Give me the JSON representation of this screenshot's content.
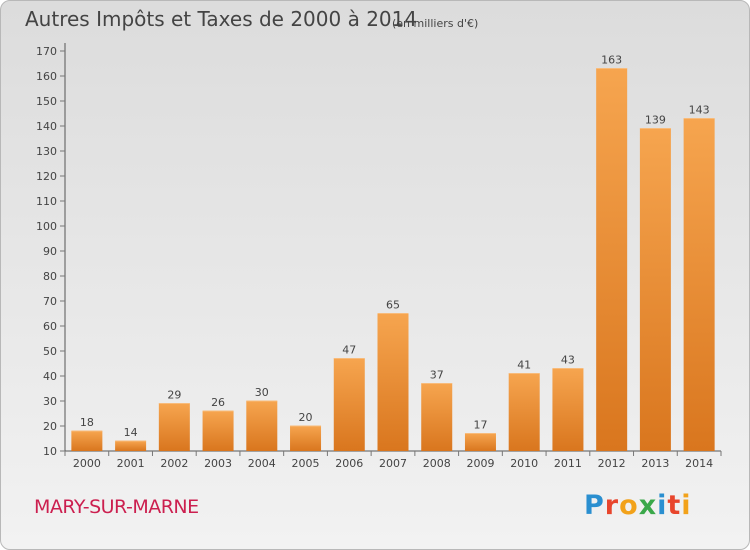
{
  "header": {
    "title": "Autres Impôts et Taxes de 2000 à 2014",
    "subtitle": "(en milliers d'€)"
  },
  "footer": {
    "commune": "MARY-SUR-MARNE",
    "logo_text": "Proxiti",
    "logo_colors": [
      "#2a8fd0",
      "#e8452c",
      "#f2a21a",
      "#3aa84a",
      "#2a8fd0",
      "#e8452c",
      "#f2a21a"
    ]
  },
  "colors": {
    "bar_light": "#f6a54f",
    "bar_dark": "#d9761e",
    "axis": "#555555",
    "grid_tick": "#777777",
    "commune": "#cc1f4f"
  },
  "chart_data": {
    "type": "bar",
    "title": "Autres Impôts et Taxes de 2000 à 2014",
    "subtitle": "(en milliers d'€)",
    "categories": [
      "2000",
      "2001",
      "2002",
      "2003",
      "2004",
      "2005",
      "2006",
      "2007",
      "2008",
      "2009",
      "2010",
      "2011",
      "2012",
      "2013",
      "2014"
    ],
    "values": [
      18,
      14,
      29,
      26,
      30,
      20,
      47,
      65,
      37,
      17,
      41,
      43,
      163,
      139,
      143
    ],
    "ylim": [
      10,
      170
    ],
    "yticks": [
      10,
      20,
      30,
      40,
      50,
      60,
      70,
      80,
      90,
      100,
      110,
      120,
      130,
      140,
      150,
      160,
      170
    ],
    "grid": false,
    "data_labels": true
  }
}
